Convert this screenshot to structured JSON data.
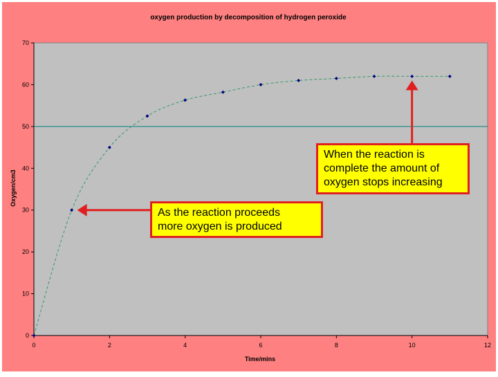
{
  "colors": {
    "frame": "#ff8080",
    "plot_area": "#c0c0c0",
    "line": "#339966",
    "marker": "#000080",
    "callout_fill": "#ffff00",
    "callout_border": "#e02020",
    "arrow": "#e02020"
  },
  "chart_data": {
    "type": "scatter",
    "title": "oxygen production by decomposition of hydrogen peroxide",
    "xlabel": "Time/mins",
    "ylabel": "Oxygen/cm3",
    "xlim": [
      0,
      12
    ],
    "ylim": [
      0,
      70
    ],
    "xticks": [
      0,
      2,
      4,
      6,
      8,
      10,
      12
    ],
    "yticks": [
      0,
      10,
      20,
      30,
      40,
      50,
      60,
      70
    ],
    "gridlines": {
      "y": [
        50
      ]
    },
    "line_style": "smoothed dashed trendline",
    "series": [
      {
        "x": [
          0,
          1,
          2,
          3,
          4,
          5,
          6,
          7,
          8,
          9,
          10,
          11
        ],
        "y": [
          0,
          30,
          45,
          52.5,
          56.3,
          58.2,
          60,
          61,
          61.5,
          62,
          62,
          62
        ]
      }
    ],
    "annotations": [
      {
        "text": "When the reaction is\ncomplete the amount of\noxygen stops increasing",
        "points_to": {
          "x": 10,
          "y": 62
        }
      },
      {
        "text": "As the reaction proceeds\nmore oxygen is produced",
        "points_to": {
          "x": 1,
          "y": 30
        }
      }
    ]
  }
}
